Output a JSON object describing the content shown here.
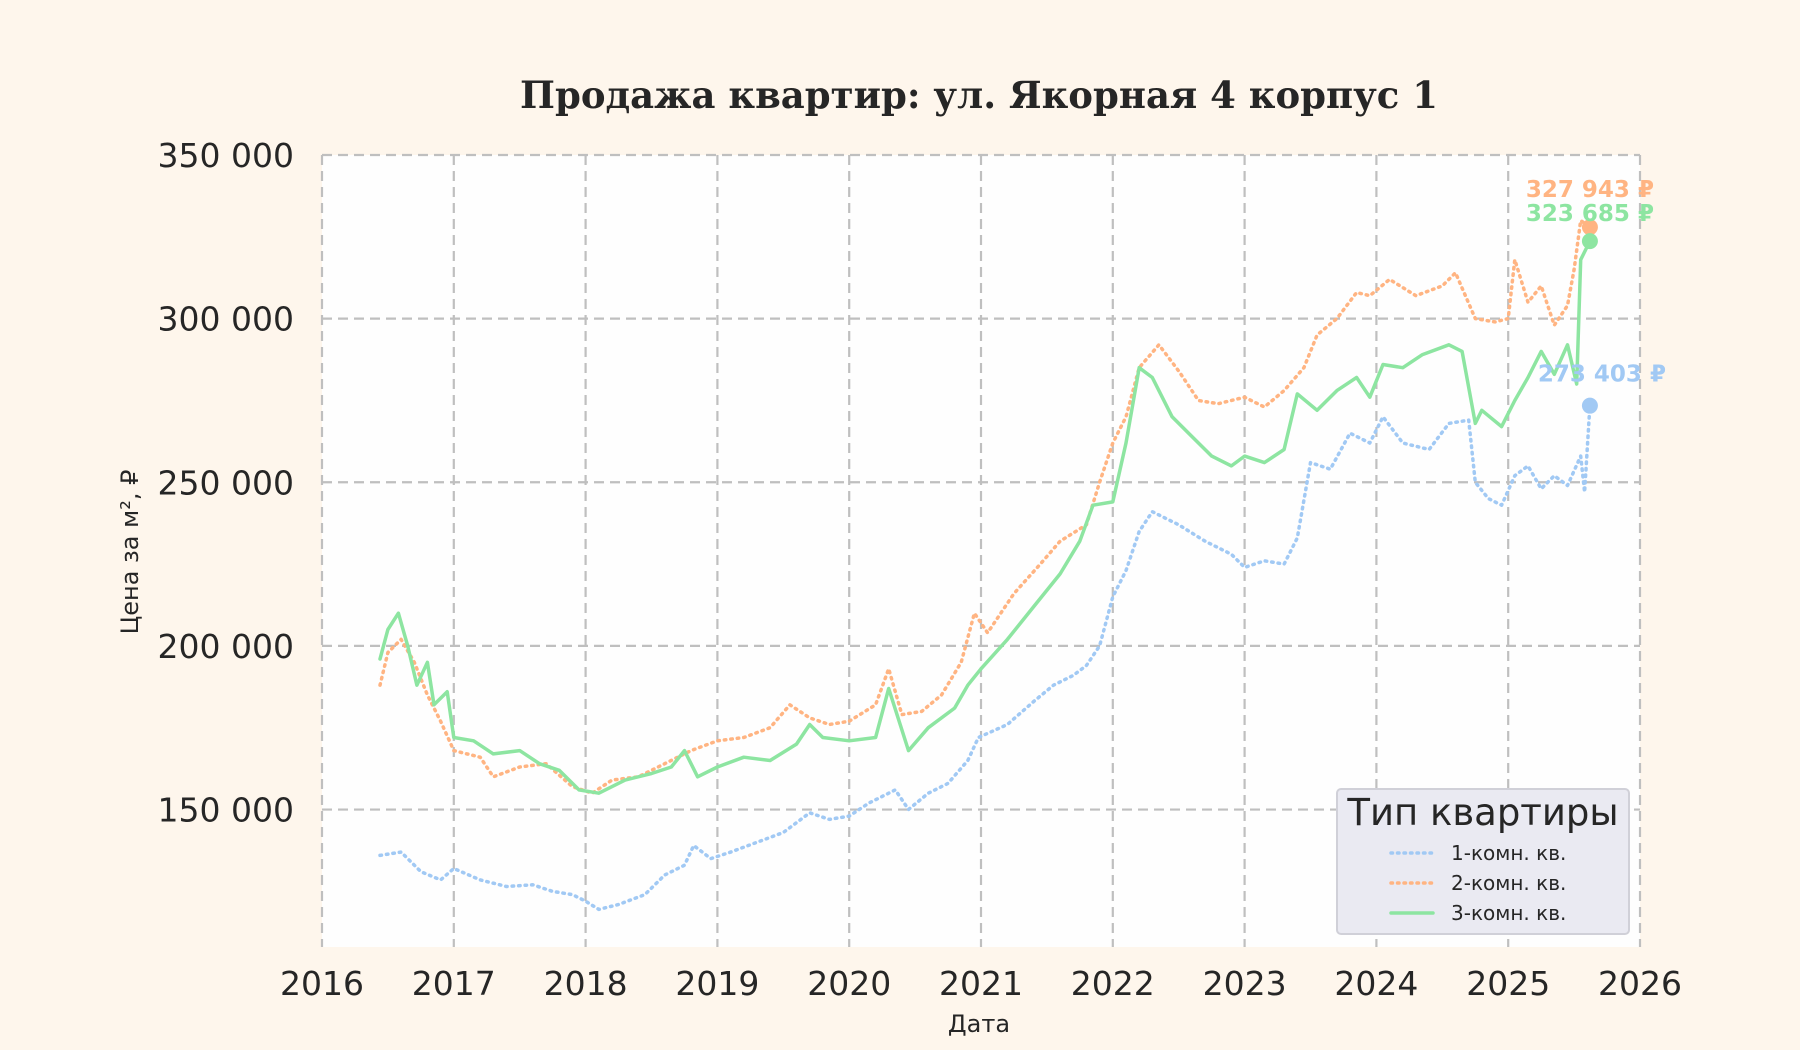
{
  "chart_data": {
    "type": "line",
    "title": "Продажа квартир: ул. Якорная 4 корпус 1",
    "xlabel": "Дата",
    "ylabel": "Цена за м², ₽",
    "xlim": [
      2016,
      2026
    ],
    "ylim": [
      108000,
      350000
    ],
    "x_ticks": [
      "2016",
      "2017",
      "2018",
      "2019",
      "2020",
      "2021",
      "2022",
      "2023",
      "2024",
      "2025",
      "2026"
    ],
    "y_ticks": [
      "150 000",
      "200 000",
      "250 000",
      "300 000",
      "350 000"
    ],
    "y_tick_values": [
      150000,
      200000,
      250000,
      300000,
      350000
    ],
    "grid": true,
    "legend": {
      "title": "Тип квартиры",
      "placement": "lower-right"
    },
    "series": [
      {
        "name": "1-комн. кв.",
        "color": "#a1c9f4",
        "style": "dotted",
        "end_label": "273 403 ₽",
        "points": [
          [
            2016.44,
            136000
          ],
          [
            2016.6,
            137000
          ],
          [
            2016.75,
            131000
          ],
          [
            2016.9,
            128500
          ],
          [
            2017.0,
            132000
          ],
          [
            2017.2,
            128500
          ],
          [
            2017.4,
            126500
          ],
          [
            2017.6,
            127000
          ],
          [
            2017.75,
            125000
          ],
          [
            2017.9,
            124000
          ],
          [
            2018.0,
            122000
          ],
          [
            2018.1,
            119500
          ],
          [
            2018.25,
            121000
          ],
          [
            2018.45,
            124000
          ],
          [
            2018.6,
            130000
          ],
          [
            2018.75,
            133000
          ],
          [
            2018.82,
            139000
          ],
          [
            2018.95,
            135000
          ],
          [
            2019.1,
            137000
          ],
          [
            2019.3,
            140000
          ],
          [
            2019.5,
            143000
          ],
          [
            2019.7,
            149000
          ],
          [
            2019.85,
            147000
          ],
          [
            2020.0,
            148000
          ],
          [
            2020.15,
            152000
          ],
          [
            2020.35,
            156000
          ],
          [
            2020.45,
            150000
          ],
          [
            2020.6,
            155000
          ],
          [
            2020.75,
            158000
          ],
          [
            2020.9,
            165000
          ],
          [
            2020.98,
            172000
          ],
          [
            2021.2,
            176000
          ],
          [
            2021.4,
            183000
          ],
          [
            2021.55,
            188000
          ],
          [
            2021.7,
            191000
          ],
          [
            2021.8,
            194000
          ],
          [
            2021.9,
            200000
          ],
          [
            2022.0,
            215000
          ],
          [
            2022.1,
            223000
          ],
          [
            2022.2,
            235000
          ],
          [
            2022.3,
            241000
          ],
          [
            2022.5,
            237000
          ],
          [
            2022.7,
            232000
          ],
          [
            2022.9,
            228000
          ],
          [
            2023.0,
            224000
          ],
          [
            2023.15,
            226000
          ],
          [
            2023.3,
            225000
          ],
          [
            2023.4,
            233000
          ],
          [
            2023.5,
            256000
          ],
          [
            2023.65,
            254000
          ],
          [
            2023.8,
            265000
          ],
          [
            2023.95,
            262000
          ],
          [
            2024.05,
            270000
          ],
          [
            2024.2,
            262000
          ],
          [
            2024.4,
            260000
          ],
          [
            2024.55,
            268000
          ],
          [
            2024.7,
            269000
          ],
          [
            2024.75,
            250000
          ],
          [
            2024.85,
            245000
          ],
          [
            2024.95,
            243000
          ],
          [
            2025.05,
            252000
          ],
          [
            2025.15,
            255000
          ],
          [
            2025.25,
            248000
          ],
          [
            2025.35,
            252000
          ],
          [
            2025.45,
            249000
          ],
          [
            2025.55,
            258000
          ],
          [
            2025.58,
            247000
          ],
          [
            2025.62,
            273403
          ]
        ]
      },
      {
        "name": "2-комн. кв.",
        "color": "#ffb482",
        "style": "dotted",
        "end_label": "327 943 ₽",
        "points": [
          [
            2016.44,
            188000
          ],
          [
            2016.5,
            198000
          ],
          [
            2016.6,
            202000
          ],
          [
            2016.7,
            195000
          ],
          [
            2016.8,
            185000
          ],
          [
            2016.9,
            177000
          ],
          [
            2017.0,
            168000
          ],
          [
            2017.2,
            166000
          ],
          [
            2017.3,
            160000
          ],
          [
            2017.5,
            163000
          ],
          [
            2017.7,
            164000
          ],
          [
            2017.9,
            157000
          ],
          [
            2018.05,
            155000
          ],
          [
            2018.2,
            159000
          ],
          [
            2018.4,
            160000
          ],
          [
            2018.6,
            164000
          ],
          [
            2018.8,
            168000
          ],
          [
            2019.0,
            171000
          ],
          [
            2019.2,
            172000
          ],
          [
            2019.4,
            175000
          ],
          [
            2019.55,
            182000
          ],
          [
            2019.7,
            178000
          ],
          [
            2019.85,
            176000
          ],
          [
            2020.0,
            177000
          ],
          [
            2020.2,
            182000
          ],
          [
            2020.3,
            193000
          ],
          [
            2020.4,
            179000
          ],
          [
            2020.55,
            180000
          ],
          [
            2020.7,
            185000
          ],
          [
            2020.85,
            195000
          ],
          [
            2020.95,
            210000
          ],
          [
            2021.05,
            204000
          ],
          [
            2021.25,
            216000
          ],
          [
            2021.45,
            225000
          ],
          [
            2021.6,
            232000
          ],
          [
            2021.8,
            237000
          ],
          [
            2021.9,
            250000
          ],
          [
            2022.0,
            262000
          ],
          [
            2022.1,
            270000
          ],
          [
            2022.2,
            285000
          ],
          [
            2022.35,
            292000
          ],
          [
            2022.5,
            284000
          ],
          [
            2022.65,
            275000
          ],
          [
            2022.8,
            274000
          ],
          [
            2023.0,
            276000
          ],
          [
            2023.15,
            273000
          ],
          [
            2023.3,
            278000
          ],
          [
            2023.45,
            285000
          ],
          [
            2023.55,
            295000
          ],
          [
            2023.7,
            300000
          ],
          [
            2023.85,
            308000
          ],
          [
            2023.95,
            307000
          ],
          [
            2024.1,
            312000
          ],
          [
            2024.3,
            307000
          ],
          [
            2024.5,
            310000
          ],
          [
            2024.6,
            314000
          ],
          [
            2024.75,
            300000
          ],
          [
            2024.9,
            299000
          ],
          [
            2025.0,
            300000
          ],
          [
            2025.05,
            318000
          ],
          [
            2025.15,
            305000
          ],
          [
            2025.25,
            310000
          ],
          [
            2025.35,
            298000
          ],
          [
            2025.45,
            304000
          ],
          [
            2025.5,
            315000
          ],
          [
            2025.55,
            330000
          ],
          [
            2025.62,
            327943
          ]
        ]
      },
      {
        "name": "3-комн. кв.",
        "color": "#8de5a1",
        "style": "solid",
        "end_label": "323 685 ₽",
        "points": [
          [
            2016.44,
            196000
          ],
          [
            2016.5,
            205000
          ],
          [
            2016.58,
            210000
          ],
          [
            2016.65,
            200000
          ],
          [
            2016.72,
            188000
          ],
          [
            2016.8,
            195000
          ],
          [
            2016.85,
            182000
          ],
          [
            2016.95,
            186000
          ],
          [
            2017.0,
            172000
          ],
          [
            2017.15,
            171000
          ],
          [
            2017.3,
            167000
          ],
          [
            2017.5,
            168000
          ],
          [
            2017.65,
            164000
          ],
          [
            2017.8,
            162000
          ],
          [
            2017.95,
            156000
          ],
          [
            2018.1,
            155000
          ],
          [
            2018.3,
            159000
          ],
          [
            2018.5,
            161000
          ],
          [
            2018.65,
            163000
          ],
          [
            2018.75,
            168000
          ],
          [
            2018.85,
            160000
          ],
          [
            2019.0,
            163000
          ],
          [
            2019.2,
            166000
          ],
          [
            2019.4,
            165000
          ],
          [
            2019.6,
            170000
          ],
          [
            2019.7,
            176000
          ],
          [
            2019.8,
            172000
          ],
          [
            2020.0,
            171000
          ],
          [
            2020.2,
            172000
          ],
          [
            2020.3,
            187000
          ],
          [
            2020.45,
            168000
          ],
          [
            2020.6,
            175000
          ],
          [
            2020.8,
            181000
          ],
          [
            2020.9,
            188000
          ],
          [
            2021.0,
            193000
          ],
          [
            2021.2,
            202000
          ],
          [
            2021.4,
            212000
          ],
          [
            2021.6,
            222000
          ],
          [
            2021.75,
            232000
          ],
          [
            2021.85,
            243000
          ],
          [
            2022.0,
            244000
          ],
          [
            2022.1,
            262000
          ],
          [
            2022.2,
            285000
          ],
          [
            2022.3,
            282000
          ],
          [
            2022.45,
            270000
          ],
          [
            2022.6,
            264000
          ],
          [
            2022.75,
            258000
          ],
          [
            2022.9,
            255000
          ],
          [
            2023.0,
            258000
          ],
          [
            2023.15,
            256000
          ],
          [
            2023.3,
            260000
          ],
          [
            2023.4,
            277000
          ],
          [
            2023.55,
            272000
          ],
          [
            2023.7,
            278000
          ],
          [
            2023.85,
            282000
          ],
          [
            2023.95,
            276000
          ],
          [
            2024.05,
            286000
          ],
          [
            2024.2,
            285000
          ],
          [
            2024.35,
            289000
          ],
          [
            2024.55,
            292000
          ],
          [
            2024.65,
            290000
          ],
          [
            2024.75,
            268000
          ],
          [
            2024.8,
            272000
          ],
          [
            2024.95,
            267000
          ],
          [
            2025.05,
            275000
          ],
          [
            2025.15,
            282000
          ],
          [
            2025.25,
            290000
          ],
          [
            2025.35,
            283000
          ],
          [
            2025.45,
            292000
          ],
          [
            2025.52,
            280000
          ],
          [
            2025.55,
            318000
          ],
          [
            2025.62,
            323685
          ]
        ]
      }
    ]
  }
}
